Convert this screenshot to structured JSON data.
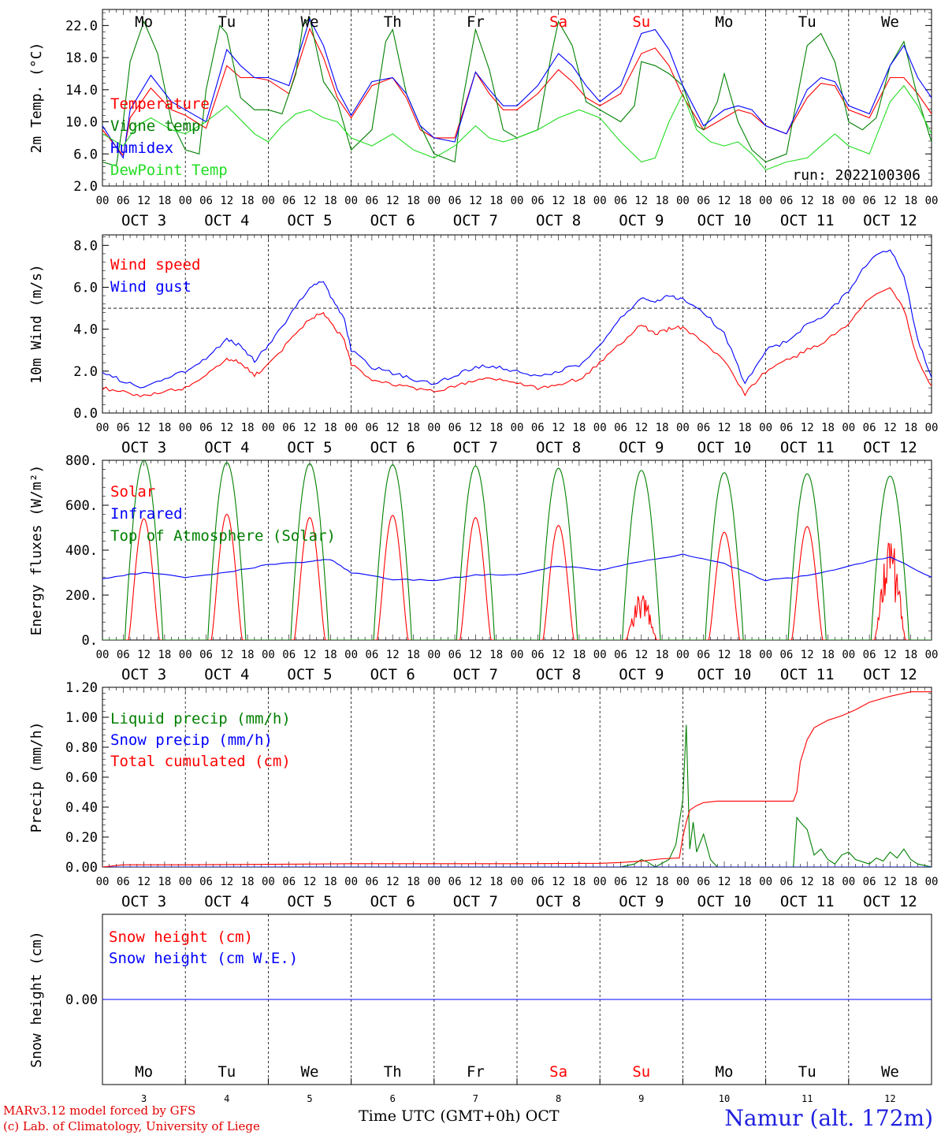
{
  "colors": {
    "red": "#ff0000",
    "green": "#008000",
    "blue": "#0000ff",
    "lightgreen": "#22dd22",
    "purple": "#7a2a8a"
  },
  "days": [
    "Mo",
    "Tu",
    "We",
    "Th",
    "Fr",
    "Sa",
    "Su",
    "Mo",
    "Tu",
    "We"
  ],
  "weekend_days": [
    5,
    6
  ],
  "hour_ticks": [
    "00",
    "06",
    "12",
    "18"
  ],
  "date_labels": [
    "OCT  3",
    "OCT  4",
    "OCT  5",
    "OCT  6",
    "OCT  7",
    "OCT  8",
    "OCT  9",
    "OCT 10",
    "OCT 11",
    "OCT 12"
  ],
  "bottom_day_numbers": [
    "3",
    "4",
    "5",
    "6",
    "7",
    "8",
    "9",
    "10",
    "11",
    "12"
  ],
  "footer": {
    "credit1": "MARv3.12 model forced by GFS",
    "credit2": "(c) Lab. of Climatology, University of Liege",
    "axis_title": "Time UTC (GMT+0h)",
    "month": "OCT",
    "station": "Namur (alt. 172m)"
  },
  "chart_data": [
    {
      "type": "line",
      "ylabel": "2m Temp. (°C)",
      "yticks": [
        "2.0",
        "6.0",
        "10.0",
        "14.0",
        "18.0",
        "22.0"
      ],
      "ylim": [
        2,
        24
      ],
      "xlim_hours": [
        0,
        240
      ],
      "annotation": "run: 2022100306",
      "series": [
        {
          "name": "Temperature",
          "color": "red",
          "x": [
            0,
            6,
            8,
            14,
            20,
            24,
            30,
            36,
            40,
            44,
            48,
            54,
            60,
            64,
            68,
            72,
            78,
            84,
            88,
            92,
            96,
            102,
            108,
            112,
            116,
            120,
            126,
            132,
            136,
            140,
            144,
            150,
            156,
            160,
            164,
            168,
            174,
            180,
            184,
            188,
            192,
            198,
            204,
            208,
            212,
            216,
            222,
            228,
            232,
            236,
            240
          ],
          "y": [
            9.0,
            5.8,
            10.5,
            14.2,
            11.5,
            10.8,
            9.2,
            17.0,
            15.5,
            15.5,
            15.2,
            13.5,
            21.6,
            18.0,
            13.0,
            10.5,
            14.5,
            15.5,
            13.0,
            9.0,
            8.0,
            8.0,
            16.2,
            13.5,
            11.5,
            11.5,
            13.5,
            16.5,
            15.0,
            13.0,
            12.0,
            13.5,
            18.5,
            19.2,
            17.0,
            13.2,
            9.0,
            10.5,
            11.5,
            11.0,
            9.5,
            8.5,
            13.0,
            14.8,
            14.5,
            11.5,
            10.5,
            15.5,
            15.5,
            13.5,
            11.0
          ]
        },
        {
          "name": "Vigne temp",
          "color": "green",
          "x": [
            0,
            4,
            6,
            8,
            12,
            16,
            20,
            24,
            28,
            30,
            34,
            36,
            40,
            44,
            48,
            52,
            56,
            58,
            60,
            64,
            68,
            72,
            78,
            82,
            84,
            88,
            92,
            96,
            102,
            104,
            108,
            112,
            116,
            120,
            126,
            130,
            132,
            136,
            140,
            144,
            150,
            154,
            156,
            160,
            164,
            168,
            172,
            174,
            178,
            180,
            184,
            188,
            192,
            198,
            202,
            204,
            208,
            212,
            216,
            220,
            224,
            228,
            232,
            236,
            240
          ],
          "y": [
            5.0,
            4.5,
            10.0,
            17.5,
            22.5,
            18.5,
            10.0,
            6.5,
            6.0,
            14.0,
            22.0,
            21.0,
            13.0,
            11.5,
            11.5,
            11.0,
            16.0,
            22.0,
            23.0,
            15.0,
            12.5,
            6.5,
            9.0,
            20.0,
            21.5,
            13.5,
            9.5,
            6.0,
            5.0,
            12.0,
            21.5,
            16.5,
            9.0,
            8.0,
            9.0,
            18.5,
            22.5,
            19.5,
            12.5,
            11.5,
            10.0,
            12.0,
            17.5,
            17.0,
            16.0,
            14.5,
            9.5,
            9.0,
            12.5,
            16.0,
            10.0,
            6.5,
            5.0,
            6.0,
            15.0,
            19.5,
            21.0,
            17.5,
            10.0,
            9.0,
            10.5,
            17.0,
            20.0,
            13.0,
            7.5
          ]
        },
        {
          "name": "Humidex",
          "color": "blue",
          "x": [
            0,
            6,
            8,
            14,
            20,
            24,
            30,
            36,
            40,
            44,
            48,
            54,
            60,
            64,
            68,
            72,
            78,
            84,
            88,
            92,
            96,
            102,
            108,
            112,
            116,
            120,
            126,
            132,
            136,
            140,
            144,
            150,
            156,
            160,
            164,
            168,
            174,
            180,
            184,
            188,
            192,
            198,
            204,
            208,
            212,
            216,
            222,
            228,
            232,
            236,
            240
          ],
          "y": [
            9.5,
            5.5,
            11.5,
            15.8,
            12.5,
            11.5,
            10.0,
            19.0,
            17.0,
            15.5,
            15.5,
            14.5,
            22.8,
            19.5,
            14.0,
            10.8,
            15.0,
            15.5,
            13.5,
            9.5,
            8.0,
            7.5,
            16.2,
            14.0,
            12.0,
            12.0,
            14.5,
            18.5,
            17.0,
            14.5,
            12.5,
            14.5,
            21.0,
            21.5,
            19.0,
            14.5,
            9.5,
            11.5,
            12.0,
            11.5,
            9.5,
            8.5,
            14.0,
            15.5,
            15.0,
            12.0,
            11.0,
            17.0,
            19.5,
            15.5,
            13.0
          ]
        },
        {
          "name": "DewPoint Temp",
          "color": "lightgreen",
          "x": [
            0,
            6,
            10,
            14,
            20,
            24,
            30,
            36,
            44,
            48,
            52,
            56,
            60,
            64,
            68,
            72,
            78,
            84,
            90,
            96,
            102,
            108,
            112,
            116,
            120,
            126,
            132,
            138,
            144,
            150,
            156,
            160,
            164,
            168,
            172,
            176,
            180,
            184,
            188,
            192,
            198,
            204,
            208,
            212,
            216,
            222,
            228,
            232,
            236,
            240
          ],
          "y": [
            8.5,
            7.0,
            9.5,
            10.5,
            9.0,
            8.5,
            10.0,
            12.0,
            8.5,
            7.5,
            9.5,
            11.0,
            11.5,
            10.5,
            10.0,
            8.0,
            7.0,
            8.5,
            6.5,
            5.5,
            7.0,
            9.5,
            8.0,
            7.5,
            8.0,
            9.0,
            10.5,
            11.5,
            10.5,
            7.5,
            5.0,
            5.5,
            10.0,
            13.5,
            9.0,
            7.5,
            7.0,
            7.5,
            6.0,
            4.0,
            5.0,
            5.5,
            7.0,
            8.5,
            7.0,
            6.0,
            12.5,
            14.5,
            12.0,
            8.5
          ]
        }
      ]
    },
    {
      "type": "line",
      "ylabel": "10m Wind (m/s)",
      "yticks": [
        "0.0",
        "2.0",
        "4.0",
        "6.0",
        "8.0"
      ],
      "ylim": [
        0,
        8.5
      ],
      "xlim_hours": [
        0,
        240
      ],
      "threshold": 5.0,
      "series": [
        {
          "name": "Wind speed",
          "color": "red",
          "x": [
            0,
            6,
            12,
            18,
            24,
            30,
            36,
            40,
            44,
            48,
            54,
            60,
            64,
            66,
            70,
            72,
            78,
            84,
            90,
            96,
            102,
            108,
            114,
            120,
            126,
            132,
            138,
            144,
            150,
            156,
            160,
            164,
            168,
            174,
            180,
            186,
            192,
            198,
            204,
            210,
            216,
            222,
            228,
            232,
            236,
            240
          ],
          "y": [
            1.2,
            1.0,
            0.8,
            1.0,
            1.2,
            1.8,
            2.6,
            2.4,
            1.8,
            2.3,
            3.4,
            4.5,
            4.8,
            4.3,
            3.5,
            2.3,
            1.6,
            1.4,
            1.2,
            1.0,
            1.3,
            1.6,
            1.6,
            1.4,
            1.2,
            1.4,
            1.6,
            2.4,
            3.3,
            4.2,
            3.8,
            4.0,
            4.1,
            3.4,
            2.5,
            0.9,
            2.0,
            2.5,
            3.0,
            3.5,
            4.3,
            5.5,
            6.0,
            5.0,
            2.5,
            1.3
          ]
        },
        {
          "name": "Wind gust",
          "color": "blue",
          "x": [
            0,
            6,
            12,
            18,
            24,
            30,
            36,
            40,
            44,
            48,
            54,
            60,
            64,
            66,
            70,
            72,
            78,
            84,
            90,
            96,
            102,
            108,
            114,
            120,
            126,
            132,
            138,
            144,
            150,
            156,
            160,
            164,
            168,
            174,
            180,
            186,
            192,
            198,
            204,
            210,
            216,
            222,
            228,
            232,
            236,
            240
          ],
          "y": [
            2.0,
            1.5,
            1.2,
            1.6,
            2.0,
            2.6,
            3.5,
            3.2,
            2.5,
            3.2,
            4.6,
            6.0,
            6.3,
            5.6,
            4.5,
            3.0,
            2.2,
            1.9,
            1.6,
            1.4,
            1.8,
            2.2,
            2.2,
            2.0,
            1.7,
            2.0,
            2.3,
            3.2,
            4.5,
            5.5,
            5.3,
            5.6,
            5.4,
            4.8,
            3.8,
            1.4,
            3.0,
            3.4,
            4.2,
            4.8,
            5.8,
            7.3,
            7.8,
            6.6,
            3.5,
            1.7
          ]
        }
      ]
    },
    {
      "type": "line",
      "ylabel": "Energy fluxes (W/m²)",
      "yticks": [
        "0.",
        "200.",
        "400.",
        "600.",
        "800."
      ],
      "ylim": [
        0,
        800
      ],
      "xlim_hours": [
        0,
        240
      ],
      "series": [
        {
          "name": "Solar",
          "color": "red",
          "peaks": [
            540,
            560,
            545,
            555,
            545,
            510,
            220,
            480,
            505,
            470
          ]
        },
        {
          "name": "Infrared",
          "color": "blue",
          "x": [
            0,
            12,
            24,
            36,
            48,
            60,
            66,
            72,
            84,
            96,
            108,
            120,
            132,
            144,
            156,
            168,
            180,
            192,
            204,
            216,
            228,
            240
          ],
          "y": [
            275,
            300,
            280,
            300,
            335,
            350,
            360,
            300,
            270,
            265,
            290,
            290,
            330,
            310,
            350,
            380,
            340,
            265,
            285,
            330,
            370,
            280
          ]
        },
        {
          "name": "Top of Atmosphere (Solar)",
          "color": "green",
          "peaks": [
            800,
            790,
            785,
            780,
            775,
            765,
            755,
            745,
            740,
            730
          ]
        }
      ]
    },
    {
      "type": "line",
      "ylabel": "Precip (mm/h)",
      "yticks": [
        "0.00",
        "0.20",
        "0.40",
        "0.60",
        "0.80",
        "1.00",
        "1.20"
      ],
      "ylim": [
        0,
        1.2
      ],
      "xlim_hours": [
        0,
        240
      ],
      "series": [
        {
          "name": "Liquid precip (mm/h)",
          "color": "green",
          "x": [
            0,
            150,
            152,
            154,
            156,
            158,
            160,
            164,
            166,
            168,
            169,
            170,
            171,
            172,
            174,
            176,
            178,
            180,
            196,
            200,
            201,
            202,
            204,
            206,
            208,
            210,
            212,
            214,
            216,
            218,
            222,
            224,
            226,
            228,
            230,
            232,
            234,
            236,
            240
          ],
          "y": [
            0,
            0,
            0.01,
            0.02,
            0.05,
            0.03,
            0,
            0.05,
            0.15,
            0.45,
            0.95,
            0.12,
            0.3,
            0.1,
            0.22,
            0.05,
            0,
            0,
            0,
            0,
            0.33,
            0.3,
            0.25,
            0.08,
            0.12,
            0.05,
            0.02,
            0.08,
            0.1,
            0.05,
            0.02,
            0.06,
            0.04,
            0.1,
            0.06,
            0.12,
            0.05,
            0.02,
            0
          ]
        },
        {
          "name": "Snow precip (mm/h)",
          "color": "blue",
          "x": [
            0,
            240
          ],
          "y": [
            0,
            0
          ]
        },
        {
          "name": "Total cumulated (cm)",
          "color": "red",
          "x": [
            0,
            6,
            24,
            48,
            72,
            96,
            120,
            144,
            150,
            156,
            162,
            167,
            168,
            169,
            170,
            172,
            174,
            178,
            184,
            196,
            200,
            201,
            202,
            204,
            206,
            210,
            214,
            218,
            222,
            228,
            234,
            240
          ],
          "y": [
            0,
            0.015,
            0.015,
            0.018,
            0.022,
            0.022,
            0.022,
            0.025,
            0.03,
            0.04,
            0.055,
            0.06,
            0.2,
            0.3,
            0.38,
            0.41,
            0.43,
            0.44,
            0.44,
            0.44,
            0.44,
            0.5,
            0.7,
            0.85,
            0.93,
            0.98,
            1.01,
            1.05,
            1.1,
            1.14,
            1.17,
            1.17
          ]
        }
      ]
    },
    {
      "type": "line",
      "ylabel": "Snow height (cm)",
      "yticks": [
        "0.00"
      ],
      "ylim": [
        -1,
        1
      ],
      "xlim_hours": [
        0,
        240
      ],
      "series": [
        {
          "name": "Snow height (cm)",
          "color": "red",
          "x": [
            0,
            240
          ],
          "y": [
            0,
            0
          ]
        },
        {
          "name": "Snow height (cm W.E.)",
          "color": "blue",
          "x": [
            0,
            240
          ],
          "y": [
            0,
            0
          ]
        }
      ]
    }
  ]
}
